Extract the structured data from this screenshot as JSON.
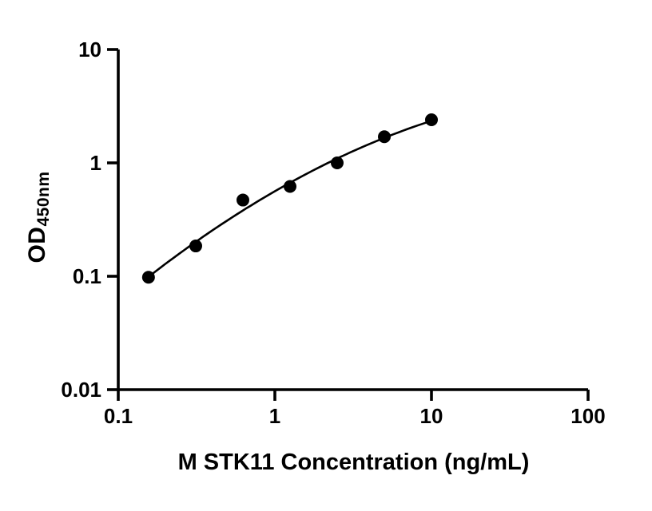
{
  "chart_data": {
    "type": "scatter",
    "title": "",
    "xlabel": "M STK11 Concentration (ng/mL)",
    "ylabel_main": "OD",
    "ylabel_sub": "450nm",
    "x_scale": "log",
    "y_scale": "log",
    "xlim": [
      0.1,
      100
    ],
    "ylim": [
      0.01,
      10
    ],
    "x_ticks": [
      0.1,
      1,
      10,
      100
    ],
    "x_tick_labels": [
      "0.1",
      "1",
      "10",
      "100"
    ],
    "y_ticks": [
      0.01,
      0.1,
      1,
      10
    ],
    "y_tick_labels": [
      "0.01",
      "0.1",
      "1",
      "10"
    ],
    "grid": false,
    "legend": "none",
    "colors": {
      "axis": "#000000",
      "marker": "#000000",
      "curve": "#000000",
      "text": "#000000",
      "background": "#ffffff"
    },
    "series": [
      {
        "name": "standard-curve-points",
        "marker": "circle",
        "x": [
          0.156,
          0.3125,
          0.625,
          1.25,
          2.5,
          5,
          10
        ],
        "y": [
          0.098,
          0.185,
          0.47,
          0.62,
          1.0,
          1.7,
          2.4
        ]
      }
    ],
    "fit": {
      "kind": "quadratic-loglog",
      "curve_x_range": [
        0.15,
        10
      ]
    }
  }
}
